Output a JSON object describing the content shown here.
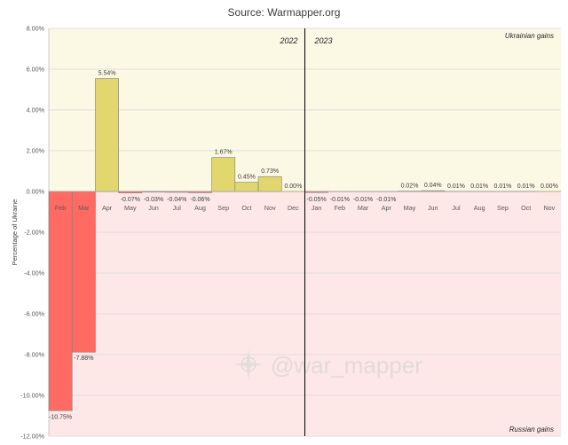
{
  "title": "Source: Warmapper.org",
  "watermark": "@war_mapper",
  "chart_data": {
    "type": "bar",
    "ylabel": "Percentage of Ukraine",
    "ylim": [
      -12,
      8
    ],
    "yticks": [
      8,
      6,
      4,
      2,
      0,
      -2,
      -4,
      -6,
      -8,
      -10,
      -12
    ],
    "ytick_labels": [
      "8.00%",
      "6.00%",
      "4.00%",
      "2.00%",
      "0.00%",
      "-2.00%",
      "-4.00%",
      "-6.00%",
      "-8.00%",
      "-10.00%",
      "-12.00%"
    ],
    "year_labels": [
      "2022",
      "2023"
    ],
    "region_labels": {
      "positive": "Ukrainian gains",
      "negative": "Russian gains"
    },
    "categories": [
      "Feb",
      "Mar",
      "Apr",
      "May",
      "Jun",
      "Jul",
      "Aug",
      "Sep",
      "Oct",
      "Nov",
      "Dec",
      "Jan",
      "Feb",
      "Mar",
      "Apr",
      "May",
      "Jun",
      "Jul",
      "Aug",
      "Sep",
      "Oct",
      "Nov"
    ],
    "values": [
      -10.75,
      -7.88,
      5.54,
      -0.07,
      -0.03,
      -0.04,
      -0.06,
      1.67,
      0.45,
      0.73,
      0.0,
      -0.05,
      -0.01,
      -0.01,
      -0.01,
      0.02,
      0.04,
      0.01,
      0.01,
      0.01,
      0.01,
      0.0
    ],
    "value_labels": [
      "-10.75%",
      "-7.88%",
      "5.54%",
      "-0.07%",
      "-0.03%",
      "-0.04%",
      "-0.06%",
      "1.67%",
      "0.45%",
      "0.73%",
      "0.00%",
      "-0.05%",
      "-0.01%",
      "-0.01%",
      "-0.01%",
      "0.02%",
      "0.04%",
      "0.01%",
      "0.01%",
      "0.01%",
      "0.01%",
      "0.00%"
    ],
    "year_split_index": 11,
    "colors": {
      "positive_bar": "#e2d66e",
      "negative_bar": "#ff6b63",
      "positive_bg": "#fbf8e4",
      "negative_bg": "#fde7e7",
      "bar_edge": "#7f7f7f",
      "grid": "#d9d9d9"
    }
  }
}
